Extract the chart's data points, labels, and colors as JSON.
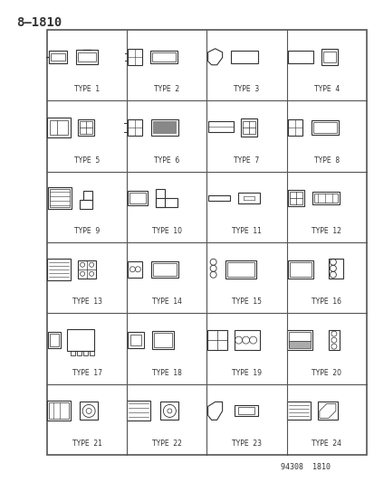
{
  "title": "8–1810",
  "footer": "94308  1810",
  "background_color": "#ffffff",
  "grid_rows": 6,
  "grid_cols": 4,
  "types": [
    "TYPE  1",
    "TYPE  2",
    "TYPE  3",
    "TYPE  4",
    "TYPE  5",
    "TYPE  6",
    "TYPE  7",
    "TYPE  8",
    "TYPE  9",
    "TYPE  10",
    "TYPE  11",
    "TYPE  12",
    "TYPE  13",
    "TYPE  14",
    "TYPE  15",
    "TYPE  16",
    "TYPE  17",
    "TYPE  18",
    "TYPE  19",
    "TYPE  20",
    "TYPE  21",
    "TYPE  22",
    "TYPE  23",
    "TYPE  24"
  ],
  "line_color": "#333333",
  "text_color": "#333333",
  "grid_color": "#555555"
}
